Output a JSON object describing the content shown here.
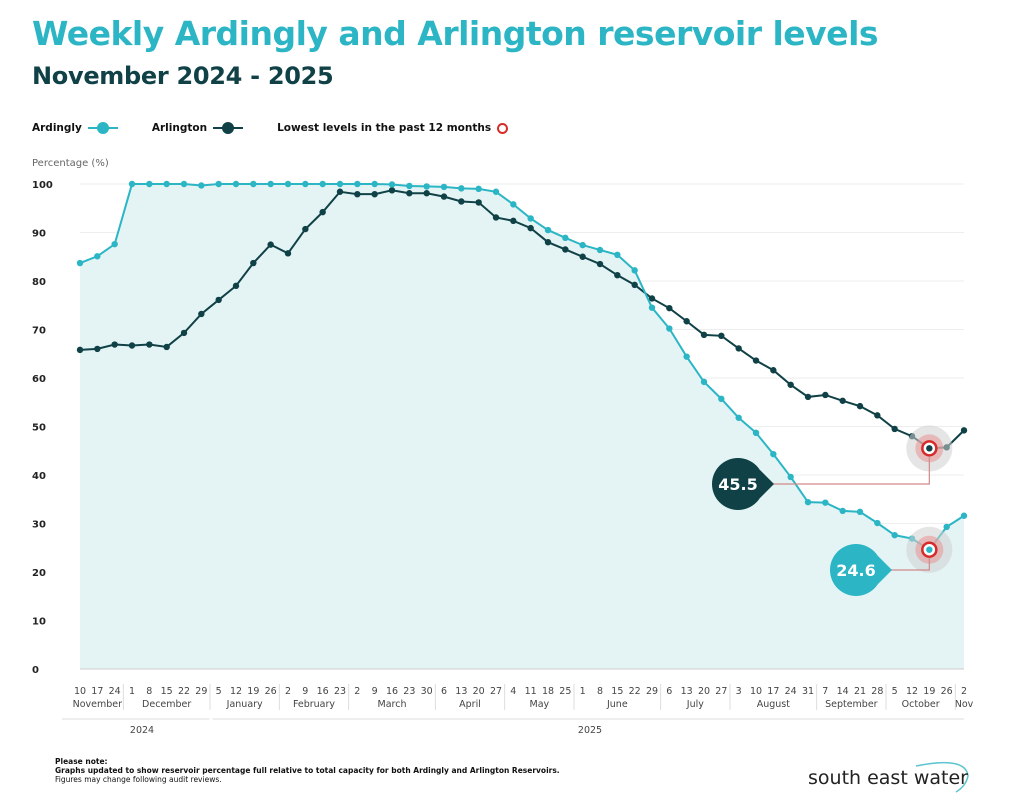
{
  "header": {
    "title": "Weekly Ardingly and Arlington reservoir levels",
    "subtitle": "November 2024 - 2025"
  },
  "legend": {
    "ardingly": "Ardingly",
    "arlington": "Arlington",
    "lowest": "Lowest levels in the past 12 months"
  },
  "footer": {
    "note_heading": "Please note:",
    "note_line1": "Graphs updated to show reservoir percentage full relative to total capacity for both Ardingly and Arlington Reservoirs.",
    "note_line2": "Figures may change following audit reviews.",
    "logo_text": "south east water"
  },
  "colors": {
    "ardingly": "#2bb5c5",
    "arlington": "#0f4146",
    "lowest": "#d62b2b",
    "fill": "#e4f4f5"
  },
  "chart_data": {
    "type": "line",
    "ylabel": "Percentage (%)",
    "ylim": [
      0,
      100
    ],
    "yticks": [
      0,
      10,
      20,
      30,
      40,
      50,
      60,
      70,
      80,
      90,
      100
    ],
    "grid": true,
    "legend_position": "top-left",
    "x_day_labels": [
      "10",
      "17",
      "24",
      "1",
      "8",
      "15",
      "22",
      "29",
      "5",
      "12",
      "19",
      "26",
      "2",
      "9",
      "16",
      "23",
      "2",
      "9",
      "16",
      "23",
      "30",
      "6",
      "13",
      "20",
      "27",
      "4",
      "11",
      "18",
      "25",
      "1",
      "8",
      "15",
      "22",
      "29",
      "6",
      "13",
      "20",
      "27",
      "3",
      "10",
      "17",
      "24",
      "31",
      "7",
      "14",
      "21",
      "28",
      "5",
      "12",
      "19",
      "26",
      "2"
    ],
    "months": [
      {
        "label": "November",
        "count": 3
      },
      {
        "label": "December",
        "count": 5
      },
      {
        "label": "January",
        "count": 4
      },
      {
        "label": "February",
        "count": 4
      },
      {
        "label": "March",
        "count": 5
      },
      {
        "label": "April",
        "count": 4
      },
      {
        "label": "May",
        "count": 4
      },
      {
        "label": "June",
        "count": 5
      },
      {
        "label": "July",
        "count": 4
      },
      {
        "label": "August",
        "count": 5
      },
      {
        "label": "September",
        "count": 4
      },
      {
        "label": "October",
        "count": 4
      },
      {
        "label": "Nov",
        "count": 1
      }
    ],
    "years": [
      {
        "label": "2024",
        "count": 8
      },
      {
        "label": "2025",
        "count": 44
      }
    ],
    "series": [
      {
        "name": "Ardingly",
        "values": [
          83.7,
          85.1,
          87.6,
          100,
          100,
          100,
          100,
          99.7,
          100,
          100,
          100,
          100,
          100,
          100,
          100,
          100,
          100,
          100,
          99.9,
          99.6,
          99.5,
          99.4,
          99.1,
          99.0,
          98.4,
          95.8,
          92.9,
          90.5,
          88.9,
          87.4,
          86.4,
          85.4,
          82.2,
          74.5,
          70.2,
          64.4,
          59.2,
          55.7,
          51.8,
          48.7,
          44.3,
          39.6,
          34.4,
          34.3,
          32.6,
          32.4,
          30.1,
          27.6,
          26.9,
          24.6,
          29.3,
          31.6
        ]
      },
      {
        "name": "Arlington",
        "values": [
          65.8,
          66.0,
          66.9,
          66.7,
          66.9,
          66.4,
          69.3,
          73.2,
          76.1,
          79.0,
          83.7,
          87.5,
          85.7,
          90.7,
          94.2,
          98.4,
          97.9,
          97.9,
          98.7,
          98.1,
          98.1,
          97.4,
          96.4,
          96.2,
          93.1,
          92.4,
          90.9,
          88.0,
          86.5,
          85.0,
          83.5,
          81.2,
          79.2,
          76.4,
          74.4,
          71.7,
          68.9,
          68.7,
          66.1,
          63.6,
          61.6,
          58.6,
          56.1,
          56.5,
          55.3,
          54.2,
          52.3,
          49.5,
          48.0,
          45.5,
          45.7,
          49.2
        ]
      }
    ],
    "annotations": [
      {
        "series": "Arlington",
        "index": 49,
        "label": "45.5"
      },
      {
        "series": "Ardingly",
        "index": 49,
        "label": "24.6"
      }
    ]
  }
}
